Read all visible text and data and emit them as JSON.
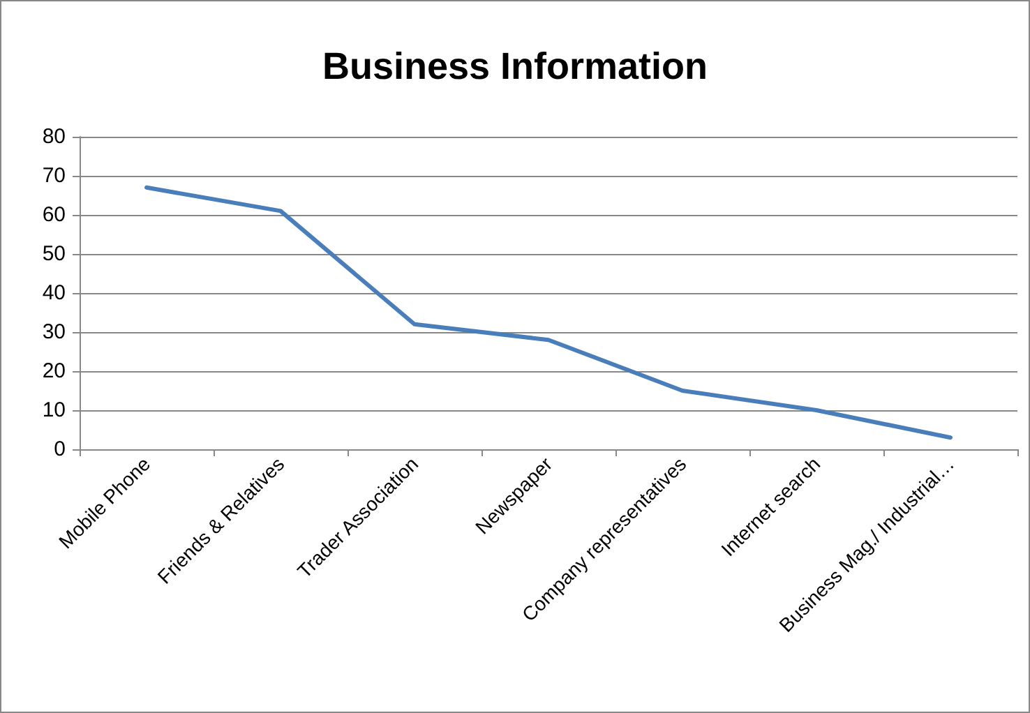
{
  "chart_data": {
    "type": "line",
    "title": "Business Information",
    "categories": [
      "Mobile Phone",
      "Friends & Relatives",
      "Trader Association",
      "Newspaper",
      "Company representatives",
      "Internet search",
      "Business Mag./ Industrial…"
    ],
    "series": [
      {
        "color": "#4a7ebb",
        "values": [
          67,
          61,
          32,
          28,
          15,
          10,
          3
        ]
      }
    ],
    "ylim": [
      0,
      80
    ],
    "yticks": [
      0,
      10,
      20,
      30,
      40,
      50,
      60,
      70,
      80
    ],
    "grid": "y",
    "marker": "none",
    "line_style": "solid"
  }
}
